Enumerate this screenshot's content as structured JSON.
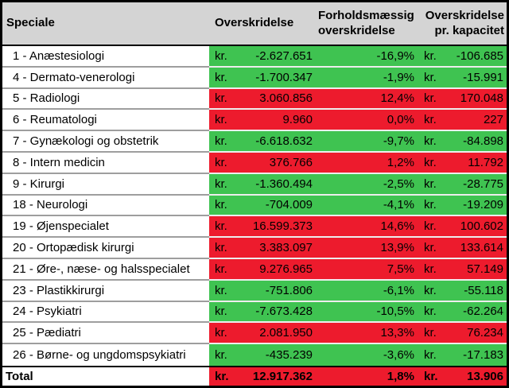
{
  "table": {
    "currency_prefix": "kr.",
    "columns": [
      {
        "label": "Speciale"
      },
      {
        "label": "Overskridelse"
      },
      {
        "label": "Forholdsmæssig overskridelse"
      },
      {
        "label": "Overskridelse pr. kapacitet"
      }
    ],
    "rows": [
      {
        "name": "1 - Anæstesiologi",
        "amount": "-2.627.651",
        "pct": "-16,9%",
        "per_capacity": "-106.685",
        "status": "under"
      },
      {
        "name": "4 - Dermato-venerologi",
        "amount": "-1.700.347",
        "pct": "-1,9%",
        "per_capacity": "-15.991",
        "status": "under"
      },
      {
        "name": "5 - Radiologi",
        "amount": "3.060.856",
        "pct": "12,4%",
        "per_capacity": "170.048",
        "status": "over"
      },
      {
        "name": "6 - Reumatologi",
        "amount": "9.960",
        "pct": "0,0%",
        "per_capacity": "227",
        "status": "over"
      },
      {
        "name": "7 - Gynækologi og obstetrik",
        "amount": "-6.618.632",
        "pct": "-9,7%",
        "per_capacity": "-84.898",
        "status": "under"
      },
      {
        "name": "8 - Intern medicin",
        "amount": "376.766",
        "pct": "1,2%",
        "per_capacity": "11.792",
        "status": "over"
      },
      {
        "name": "9 - Kirurgi",
        "amount": "-1.360.494",
        "pct": "-2,5%",
        "per_capacity": "-28.775",
        "status": "under"
      },
      {
        "name": "18 - Neurologi",
        "amount": "-704.009",
        "pct": "-4,1%",
        "per_capacity": "-19.209",
        "status": "under"
      },
      {
        "name": "19 - Øjenspecialet",
        "amount": "16.599.373",
        "pct": "14,6%",
        "per_capacity": "100.602",
        "status": "over"
      },
      {
        "name": "20 - Ortopædisk kirurgi",
        "amount": "3.383.097",
        "pct": "13,9%",
        "per_capacity": "133.614",
        "status": "over"
      },
      {
        "name": "21 - Øre-, næse- og halsspecialet",
        "amount": "9.276.965",
        "pct": "7,5%",
        "per_capacity": "57.149",
        "status": "over"
      },
      {
        "name": "23 - Plastikkirurgi",
        "amount": "-751.806",
        "pct": "-6,1%",
        "per_capacity": "-55.118",
        "status": "under"
      },
      {
        "name": "24 - Psykiatri",
        "amount": "-7.673.428",
        "pct": "-10,5%",
        "per_capacity": "-62.264",
        "status": "under"
      },
      {
        "name": "25 - Pædiatri",
        "amount": "2.081.950",
        "pct": "13,3%",
        "per_capacity": "76.234",
        "status": "over"
      },
      {
        "name": "26 - Børne- og ungdomspsykiatri",
        "amount": "-435.239",
        "pct": "-3,6%",
        "per_capacity": "-17.183",
        "status": "under"
      }
    ],
    "total_row": {
      "label": "Total",
      "amount": "12.917.362",
      "pct": "1,8%",
      "per_capacity": "13.906",
      "status": "over"
    }
  },
  "colors": {
    "over": "#ED1B2D",
    "under": "#3FC351",
    "header_bg": "#D4D4D4",
    "grid_line": "#9E9E9E",
    "border": "#000000"
  }
}
